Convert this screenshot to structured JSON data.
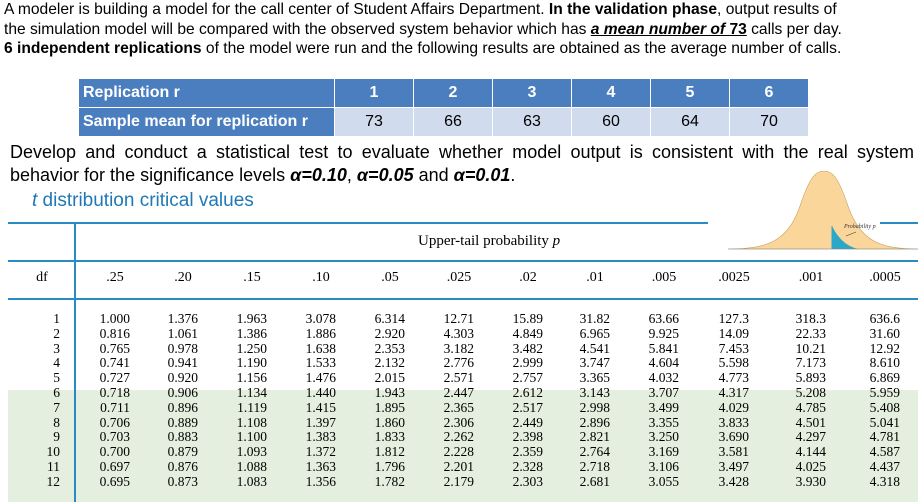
{
  "intro": {
    "line1_a": "A modeler is building a model for the call center of Student Affairs Department. ",
    "line1_b": "In the validation phase",
    "line1_c": ", output results of",
    "line2_a": "the simulation model will be compared with the observed system behavior which has ",
    "line2_b": "a mean number of ",
    "line2_c": "73",
    "line2_d": " calls per day.",
    "line3_a": "6 independent replications",
    "line3_b": " of the model were run and the following results are obtained as the average number of calls."
  },
  "replications": {
    "header_label": "Replication r",
    "header_values": [
      "1",
      "2",
      "3",
      "4",
      "5",
      "6"
    ],
    "row_label": "Sample mean for replication r",
    "row_values": [
      "73",
      "66",
      "63",
      "60",
      "64",
      "70"
    ]
  },
  "develop": {
    "text_a": "Develop and conduct a statistical test to evaluate whether model output is consistent with the real system behavior for the significance levels ",
    "alpha1": "α=0.10",
    "sep1": ", ",
    "alpha2": "α=0.05",
    "sep2": " and ",
    "alpha3": "α=0.01",
    "end": "."
  },
  "tdist": {
    "title_t": "t",
    "title_rest": " distribution critical values",
    "upper_tail": "Upper-tail probability ",
    "upper_tail_p": "p",
    "curve_label": "Probability p",
    "df_header": "df",
    "columns": [
      ".25",
      ".20",
      ".15",
      ".10",
      ".05",
      ".025",
      ".02",
      ".01",
      ".005",
      ".0025",
      ".001",
      ".0005"
    ],
    "rows": [
      {
        "df": "1",
        "values": [
          "1.000",
          "1.376",
          "1.963",
          "3.078",
          "6.314",
          "12.71",
          "15.89",
          "31.82",
          "63.66",
          "127.3",
          "318.3",
          "636.6"
        ]
      },
      {
        "df": "2",
        "values": [
          "0.816",
          "1.061",
          "1.386",
          "1.886",
          "2.920",
          "4.303",
          "4.849",
          "6.965",
          "9.925",
          "14.09",
          "22.33",
          "31.60"
        ]
      },
      {
        "df": "3",
        "values": [
          "0.765",
          "0.978",
          "1.250",
          "1.638",
          "2.353",
          "3.182",
          "3.482",
          "4.541",
          "5.841",
          "7.453",
          "10.21",
          "12.92"
        ]
      },
      {
        "df": "4",
        "values": [
          "0.741",
          "0.941",
          "1.190",
          "1.533",
          "2.132",
          "2.776",
          "2.999",
          "3.747",
          "4.604",
          "5.598",
          "7.173",
          "8.610"
        ]
      },
      {
        "df": "5",
        "values": [
          "0.727",
          "0.920",
          "1.156",
          "1.476",
          "2.015",
          "2.571",
          "2.757",
          "3.365",
          "4.032",
          "4.773",
          "5.893",
          "6.869"
        ]
      },
      {
        "df": "6",
        "values": [
          "0.718",
          "0.906",
          "1.134",
          "1.440",
          "1.943",
          "2.447",
          "2.612",
          "3.143",
          "3.707",
          "4.317",
          "5.208",
          "5.959"
        ]
      },
      {
        "df": "7",
        "values": [
          "0.711",
          "0.896",
          "1.119",
          "1.415",
          "1.895",
          "2.365",
          "2.517",
          "2.998",
          "3.499",
          "4.029",
          "4.785",
          "5.408"
        ]
      },
      {
        "df": "8",
        "values": [
          "0.706",
          "0.889",
          "1.108",
          "1.397",
          "1.860",
          "2.306",
          "2.449",
          "2.896",
          "3.355",
          "3.833",
          "4.501",
          "5.041"
        ]
      },
      {
        "df": "9",
        "values": [
          "0.703",
          "0.883",
          "1.100",
          "1.383",
          "1.833",
          "2.262",
          "2.398",
          "2.821",
          "3.250",
          "3.690",
          "4.297",
          "4.781"
        ]
      },
      {
        "df": "10",
        "values": [
          "0.700",
          "0.879",
          "1.093",
          "1.372",
          "1.812",
          "2.228",
          "2.359",
          "2.764",
          "3.169",
          "3.581",
          "4.144",
          "4.587"
        ]
      },
      {
        "df": "11",
        "values": [
          "0.697",
          "0.876",
          "1.088",
          "1.363",
          "1.796",
          "2.201",
          "2.328",
          "2.718",
          "3.106",
          "3.497",
          "4.025",
          "4.437"
        ]
      },
      {
        "df": "12",
        "values": [
          "0.695",
          "0.873",
          "1.083",
          "1.356",
          "1.782",
          "2.179",
          "2.303",
          "2.681",
          "3.055",
          "3.428",
          "3.930",
          "4.318"
        ]
      }
    ]
  },
  "colors": {
    "table_header_blue": "#4a7ebf",
    "table_row_light": "#d1dbee",
    "title_blue": "#1f78b5",
    "rule_blue": "#2a8bc4",
    "band_green": "#e5efdf",
    "curve_fill": "#fbd69a",
    "tail_fill": "#2ba7c8"
  }
}
